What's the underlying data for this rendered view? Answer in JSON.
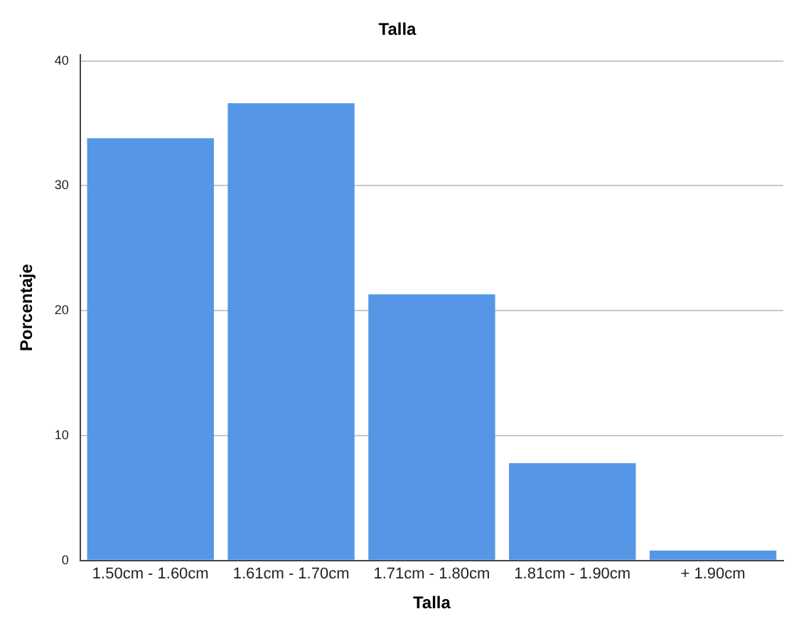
{
  "chart_data": {
    "type": "bar",
    "title": "Talla",
    "xlabel": "Talla",
    "ylabel": "Porcentaje",
    "categories": [
      "1.50cm - 1.60cm",
      "1.61cm - 1.70cm",
      "1.71cm - 1.80cm",
      "1.81cm - 1.90cm",
      "+ 1.90cm"
    ],
    "values": [
      33.8,
      36.6,
      21.3,
      7.8,
      0.8
    ],
    "color": "#5596e6",
    "ylim": [
      0,
      40.5
    ],
    "yticks": [
      0,
      10,
      20,
      30,
      40
    ],
    "grid": "y",
    "legend": false
  }
}
